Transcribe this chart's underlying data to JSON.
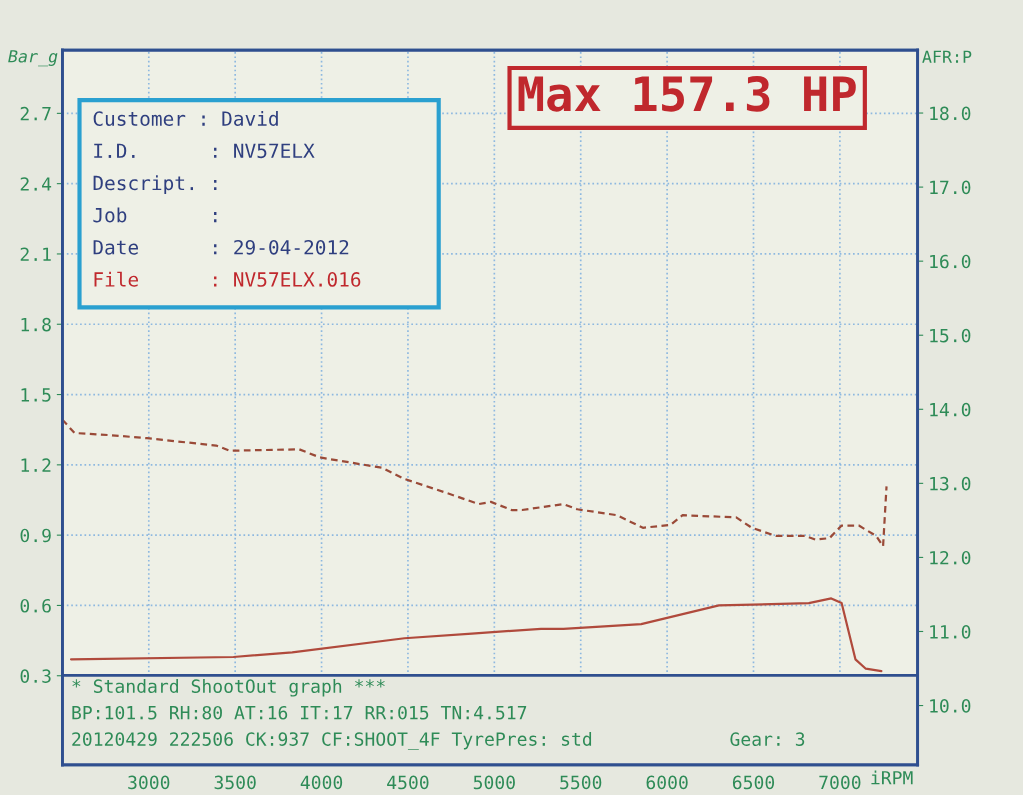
{
  "chart_data": {
    "type": "line",
    "title": "Max 157.3 HP",
    "xlabel": "iRPM",
    "ylabel": "Bar_g",
    "y2label": "AFR:P",
    "xlim": [
      2500,
      7450
    ],
    "xticks": [
      3000,
      3500,
      4000,
      4500,
      5000,
      5500,
      6000,
      6500,
      7000
    ],
    "ylim": [
      -0.08,
      2.97
    ],
    "yticks": [
      0.3,
      0.6,
      0.9,
      1.2,
      1.5,
      1.8,
      2.1,
      2.4,
      2.7
    ],
    "y2lim": [
      9.2,
      18.85
    ],
    "y2ticks": [
      {
        "value": 10,
        "label": "10.0"
      },
      {
        "value": 11,
        "label": "11.0"
      },
      {
        "value": 12,
        "label": "12.0"
      },
      {
        "value": 13,
        "label": "13.0"
      },
      {
        "value": 14,
        "label": "14.0"
      },
      {
        "value": 15,
        "label": "15.0"
      },
      {
        "value": 16,
        "label": "16.0"
      },
      {
        "value": 17,
        "label": "17.0"
      },
      {
        "value": 18,
        "label": "18.0"
      }
    ],
    "grid": true,
    "marker": "none",
    "series": [
      {
        "color": "#b04a3c",
        "line_style": "solid",
        "x": [
          2550,
          3490,
          3830,
          4480,
          4870,
          5270,
          5400,
          5850,
          6300,
          6820,
          6950,
          7010,
          7090,
          7150,
          7240
        ],
        "values": [
          0.37,
          0.38,
          0.4,
          0.46,
          0.48,
          0.5,
          0.5,
          0.52,
          0.6,
          0.61,
          0.63,
          0.61,
          0.37,
          0.33,
          0.32
        ]
      },
      {
        "color": "#9a4a38",
        "line_style": "dashed",
        "axis": "y2",
        "x": [
          2500,
          2570,
          2780,
          2990,
          3390,
          3470,
          3870,
          3990,
          4350,
          4480,
          4750,
          4910,
          4980,
          5100,
          5160,
          5400,
          5480,
          5710,
          5860,
          6020,
          6090,
          6400,
          6490,
          6630,
          6800,
          6860,
          6940,
          7010,
          7110,
          7210,
          7250,
          7270
        ],
        "values": [
          13.86,
          13.68,
          13.65,
          13.61,
          13.51,
          13.44,
          13.46,
          13.35,
          13.21,
          13.06,
          12.85,
          12.72,
          12.75,
          12.64,
          12.64,
          12.72,
          12.65,
          12.57,
          12.4,
          12.44,
          12.57,
          12.54,
          12.4,
          12.29,
          12.29,
          12.24,
          12.26,
          12.43,
          12.43,
          12.29,
          12.15,
          12.96
        ]
      }
    ],
    "annotations": [
      "Customer : David",
      "I.D.      : NV57ELX",
      "Descript. :",
      "Job       :",
      "Date      : 29-04-2012",
      "File      : NV57ELX.016",
      "* Standard ShootOut graph ***",
      "BP:101.5 RH:80 AT:16 IT:17 RR:015 TN:4.517",
      "20120429 222506 CK:937 CF:SHOOT_4F TyrePres: std",
      "Gear: 3"
    ]
  }
}
